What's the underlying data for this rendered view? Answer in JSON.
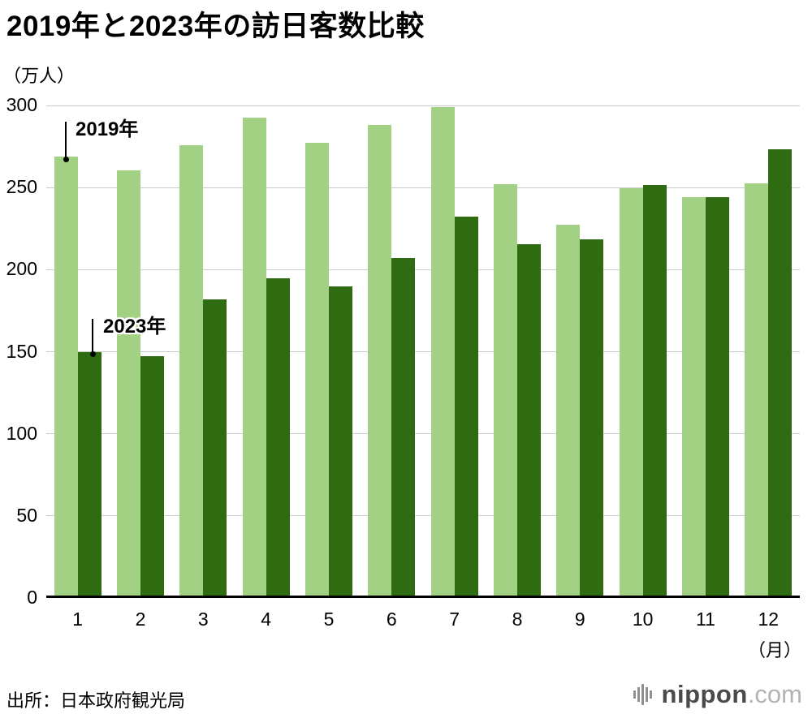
{
  "page": {
    "title": "2019年と2023年の訪日客数比較",
    "source": "出所：日本政府観光局",
    "logo": {
      "brand": "nippon",
      "tld": ".com",
      "icon": "equalizer-bars-icon"
    }
  },
  "chart_data": {
    "type": "bar",
    "title": "2019年と2023年の訪日客数比較",
    "y_unit_label": "（万人）",
    "x_unit_label": "（月）",
    "xlabel": "月",
    "ylabel": "万人",
    "ylim": [
      0,
      300
    ],
    "yticks": [
      0,
      50,
      100,
      150,
      200,
      250,
      300
    ],
    "grid": true,
    "legend_position": "callout-labels-on-first-month-bars",
    "categories": [
      "1",
      "2",
      "3",
      "4",
      "5",
      "6",
      "7",
      "8",
      "9",
      "10",
      "11",
      "12"
    ],
    "series": [
      {
        "key": "2019",
        "name": "2019年",
        "color": "#a3d183",
        "values": [
          268.9,
          260.4,
          276.0,
          292.7,
          277.3,
          288.0,
          299.1,
          252.0,
          227.3,
          249.7,
          244.1,
          252.6
        ]
      },
      {
        "key": "2023",
        "name": "2023年",
        "color": "#2e6b11",
        "values": [
          149.7,
          147.5,
          181.7,
          194.9,
          189.9,
          207.3,
          232.1,
          215.7,
          218.4,
          251.7,
          244.1,
          273.4
        ]
      }
    ]
  }
}
